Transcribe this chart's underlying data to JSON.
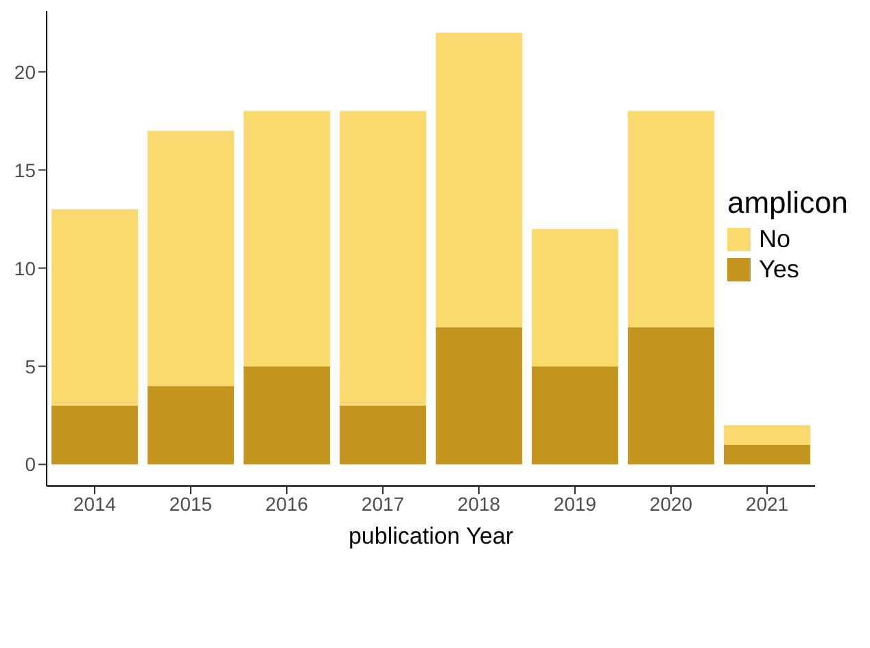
{
  "chart_data": {
    "type": "bar",
    "stacked": true,
    "xlabel": "publication Year",
    "legend_title": "amplicon",
    "legend": "right",
    "grid": false,
    "categories": [
      "2014",
      "2015",
      "2016",
      "2017",
      "2018",
      "2019",
      "2020",
      "2021"
    ],
    "series": [
      {
        "name": "Yes",
        "color": "#c49620",
        "values": [
          3,
          4,
          5,
          3,
          7,
          5,
          7,
          1
        ]
      },
      {
        "name": "No",
        "color": "#fad96e",
        "values": [
          10,
          13,
          13,
          15,
          15,
          7,
          11,
          1
        ]
      }
    ],
    "ylim": [
      -1.1,
      23.1
    ],
    "yticks": [
      0,
      5,
      10,
      15,
      20
    ]
  }
}
